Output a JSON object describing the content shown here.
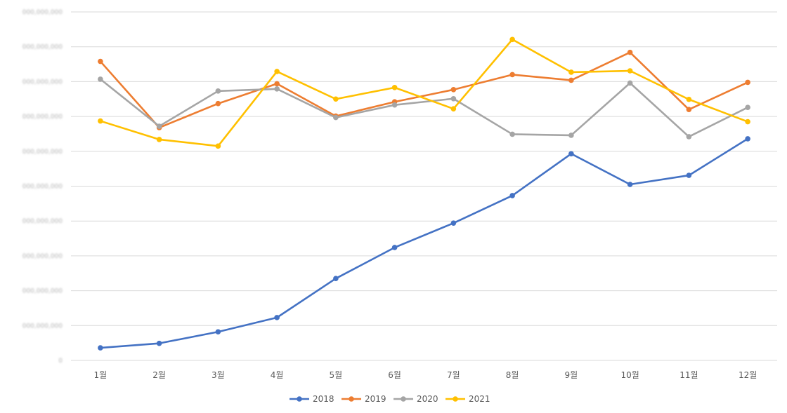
{
  "chart_data": {
    "type": "line",
    "title": "",
    "xlabel": "",
    "ylabel": "",
    "categories": [
      "1월",
      "2월",
      "3월",
      "4월",
      "5월",
      "6월",
      "7월",
      "8월",
      "9월",
      "10월",
      "11월",
      "12월"
    ],
    "yticks": [
      "0",
      "000,000,000",
      "000,000,000",
      "000,000,000",
      "000,000,000",
      "000,000,000",
      "000,000,000",
      "000,000,000",
      "000,000,000",
      "000,000,000",
      "000,000,000"
    ],
    "ylim": [
      0,
      10
    ],
    "grid": true,
    "legend": "bottom-center",
    "series": [
      {
        "name": "2018",
        "color": "#4472C4",
        "values": [
          0.36,
          0.49,
          0.82,
          1.23,
          2.35,
          3.24,
          3.94,
          4.73,
          5.93,
          5.05,
          5.31,
          6.36
        ]
      },
      {
        "name": "2019",
        "color": "#ED7D31",
        "values": [
          8.58,
          6.68,
          7.37,
          7.94,
          7.01,
          7.42,
          7.77,
          8.2,
          8.04,
          8.84,
          7.2,
          7.98
        ]
      },
      {
        "name": "2020",
        "color": "#A5A5A5",
        "values": [
          8.07,
          6.72,
          7.73,
          7.79,
          6.97,
          7.33,
          7.51,
          6.49,
          6.46,
          7.96,
          6.42,
          7.26
        ]
      },
      {
        "name": "2021",
        "color": "#FFC000",
        "values": [
          6.87,
          6.34,
          6.15,
          8.29,
          7.5,
          7.83,
          7.22,
          9.21,
          8.27,
          8.31,
          7.49,
          6.85
        ]
      }
    ]
  }
}
